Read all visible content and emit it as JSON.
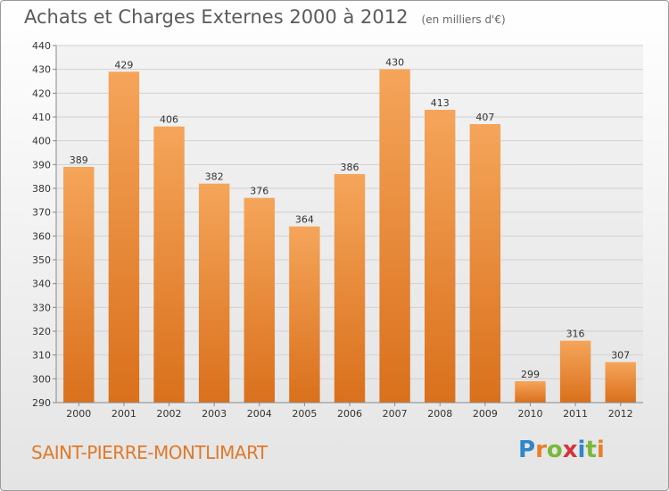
{
  "header": {
    "title": "Achats et Charges Externes 2000 à 2012",
    "unit": "(en milliers d'€)"
  },
  "footer": {
    "city": "SAINT-PIERRE-MONTLIMART",
    "logo_letters": [
      "P",
      "r",
      "o",
      "x",
      "i",
      "t",
      "i"
    ],
    "logo_colors": [
      "#2f86c9",
      "#e8802a",
      "#7ab83a",
      "#d8323a",
      "#2f86c9",
      "#7ab83a",
      "#e8802a"
    ]
  },
  "chart_data": {
    "type": "bar",
    "title": "Achats et Charges Externes 2000 à 2012",
    "categories": [
      "2000",
      "2001",
      "2002",
      "2003",
      "2004",
      "2005",
      "2006",
      "2007",
      "2008",
      "2009",
      "2010",
      "2011",
      "2012"
    ],
    "values": [
      389,
      429,
      406,
      382,
      376,
      364,
      386,
      430,
      413,
      407,
      299,
      316,
      307
    ],
    "ylim": [
      290,
      440
    ],
    "yticks": [
      290,
      300,
      310,
      320,
      330,
      340,
      350,
      360,
      370,
      380,
      390,
      400,
      410,
      420,
      430,
      440
    ],
    "grid": true,
    "bar_color_top": "#f5a55a",
    "bar_color_bottom": "#d9701c"
  }
}
